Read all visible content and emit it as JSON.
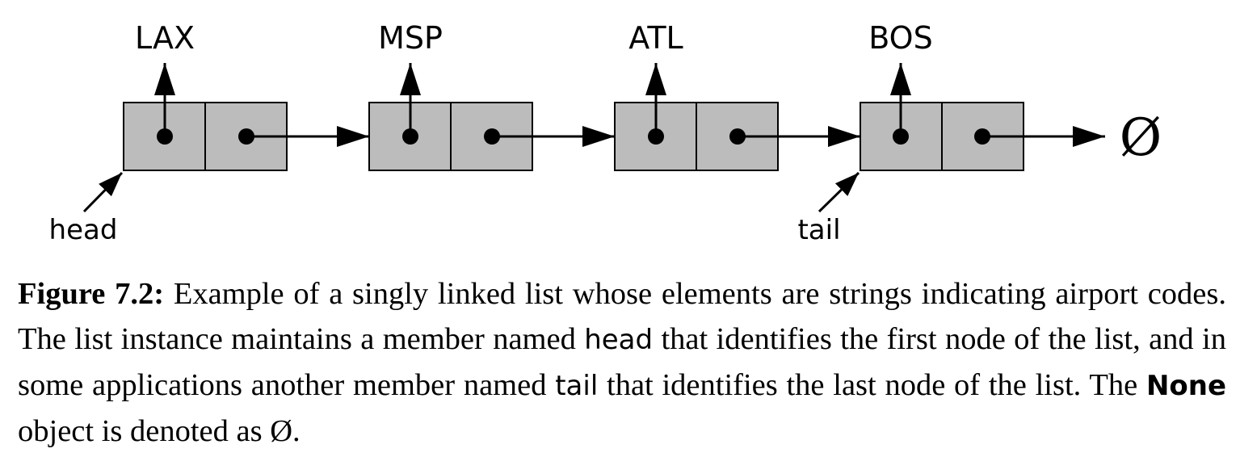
{
  "diagram": {
    "nodes": [
      {
        "element": "LAX"
      },
      {
        "element": "MSP"
      },
      {
        "element": "ATL"
      },
      {
        "element": "BOS"
      }
    ],
    "head_label": "head",
    "tail_label": "tail",
    "null_symbol": "Ø",
    "colors": {
      "node_fill": "#bcbcbc",
      "stroke": "#000000"
    }
  },
  "caption": {
    "figure_number": "Figure 7.2:",
    "text_1": " Example of a singly linked list whose elements are strings indicating airport codes.  The list instance maintains a member named ",
    "head_term": "head",
    "text_2": " that identifies the first node of the list, and in some applications another member named ",
    "tail_term": "tail",
    "text_3": " that identifies the last node of the list. The ",
    "none_term": "None",
    "text_4": " object is denoted as ",
    "null_symbol": "Ø",
    "text_5": "."
  }
}
